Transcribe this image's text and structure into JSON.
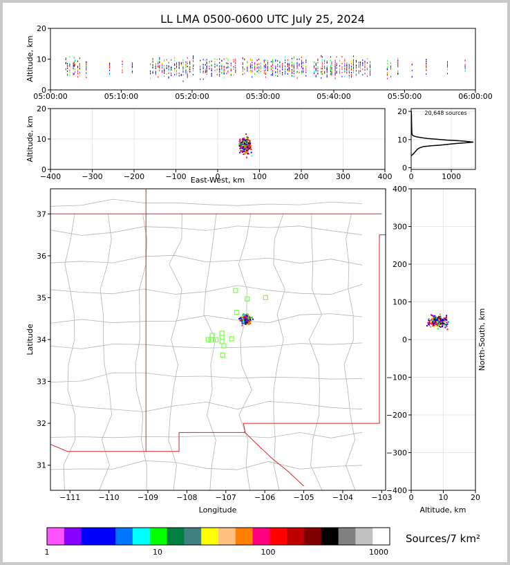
{
  "title": "LL LMA 0500-0600 UTC July 25, 2024",
  "colors": {
    "lightning": [
      "#0000ff",
      "#ff0000",
      "#00ff00",
      "#000000",
      "#ff8000",
      "#00ffff",
      "#ff00ff",
      "#ffff00",
      "#8000ff",
      "#008040"
    ],
    "map_outline": "#b4b4b4",
    "state_border": "#dd2222",
    "stations": "#77ff44"
  },
  "chart_data": [
    {
      "type": "scatter",
      "name": "altitude-time",
      "ylabel": "Altitude, km",
      "ylim": [
        0,
        20
      ],
      "yticks": [
        "0",
        "10",
        "20"
      ],
      "xticks": [
        "05:00:00",
        "05:10:00",
        "05:20:00",
        "05:30:00",
        "05:40:00",
        "05:50:00",
        "06:00:00"
      ],
      "xrange": [
        "05:00:00",
        "06:00:00"
      ]
    },
    {
      "type": "scatter",
      "name": "altitude-eastwest",
      "xlabel": "East-West, km",
      "ylabel": "Altitude, km",
      "xlim": [
        -400,
        400
      ],
      "ylim": [
        0,
        20
      ],
      "xticks": [
        "−400",
        "−300",
        "−200",
        "−100",
        "0",
        "100",
        "200",
        "300",
        "400"
      ],
      "yticks": [
        "0",
        "10",
        "20"
      ]
    },
    {
      "type": "line",
      "name": "source-histogram",
      "annotation": "20,648 sources",
      "xlim": [
        0,
        1600
      ],
      "ylim": [
        0,
        21
      ],
      "xticks": [
        "0",
        "1000"
      ],
      "yticks": [
        "0",
        "10",
        "20"
      ],
      "x": [
        0,
        30,
        60,
        90,
        120,
        150,
        200,
        300,
        500,
        700,
        900,
        1050,
        1200,
        1300,
        1400,
        1480,
        1550,
        1480,
        1350,
        1150,
        900,
        650,
        400,
        250,
        120,
        60,
        30,
        20,
        15,
        10,
        6
      ],
      "y": [
        4.2,
        4.6,
        5.0,
        5.5,
        6.0,
        6.5,
        7.0,
        7.5,
        7.8,
        8.0,
        8.3,
        8.5,
        8.7,
        8.8,
        8.9,
        9.0,
        9.1,
        9.2,
        9.4,
        9.6,
        9.8,
        10.1,
        10.4,
        10.7,
        11.0,
        11.3,
        11.6,
        12.0,
        13.0,
        16.0,
        20.0
      ]
    },
    {
      "type": "scatter",
      "name": "plan-view-map",
      "xlabel": "Longitude",
      "ylabel": "Latitude",
      "xlim": [
        -111.5,
        -102.9
      ],
      "ylim": [
        30.4,
        37.6
      ],
      "xticks": [
        "−111",
        "−110",
        "−109",
        "−108",
        "−107",
        "−106",
        "−105",
        "−104",
        "−103"
      ],
      "yticks": [
        "31",
        "32",
        "33",
        "34",
        "35",
        "36",
        "37"
      ],
      "stations": [
        [
          -106.75,
          35.17
        ],
        [
          -106.45,
          34.97
        ],
        [
          -105.98,
          35.0
        ],
        [
          -106.72,
          34.65
        ],
        [
          -107.35,
          34.1
        ],
        [
          -107.1,
          34.15
        ],
        [
          -107.1,
          34.05
        ],
        [
          -107.38,
          34.0
        ],
        [
          -107.25,
          34.0
        ],
        [
          -107.45,
          34.0
        ],
        [
          -107.1,
          33.95
        ],
        [
          -106.85,
          34.02
        ],
        [
          -107.05,
          33.85
        ],
        [
          -107.08,
          33.63
        ]
      ],
      "cluster": {
        "lon": [
          -106.8,
          -106.2
        ],
        "lat": [
          34.25,
          34.75
        ]
      }
    },
    {
      "type": "scatter",
      "name": "northsouth-altitude",
      "xlabel": "Altitude, km",
      "ylabel": "North-South, km",
      "xlim": [
        0,
        20
      ],
      "ylim": [
        -400,
        400
      ],
      "xticks": [
        "0",
        "10",
        "20"
      ],
      "yticks": [
        "−400",
        "−300",
        "−200",
        "−100",
        "0",
        "100",
        "200",
        "300",
        "400"
      ]
    }
  ],
  "colorbar": {
    "label": "Sources/7 km²",
    "ticks": [
      "1",
      "10",
      "100",
      "1000"
    ],
    "colors": [
      "#ff55ff",
      "#8800ff",
      "#0000ff",
      "#0000ff",
      "#0077ff",
      "#00ffff",
      "#00ff00",
      "#008040",
      "#408080",
      "#ffff00",
      "#ffc080",
      "#ff8000",
      "#ff0080",
      "#ff0000",
      "#c00000",
      "#800000",
      "#000000",
      "#808080",
      "#c0c0c0",
      "#ffffff"
    ]
  }
}
